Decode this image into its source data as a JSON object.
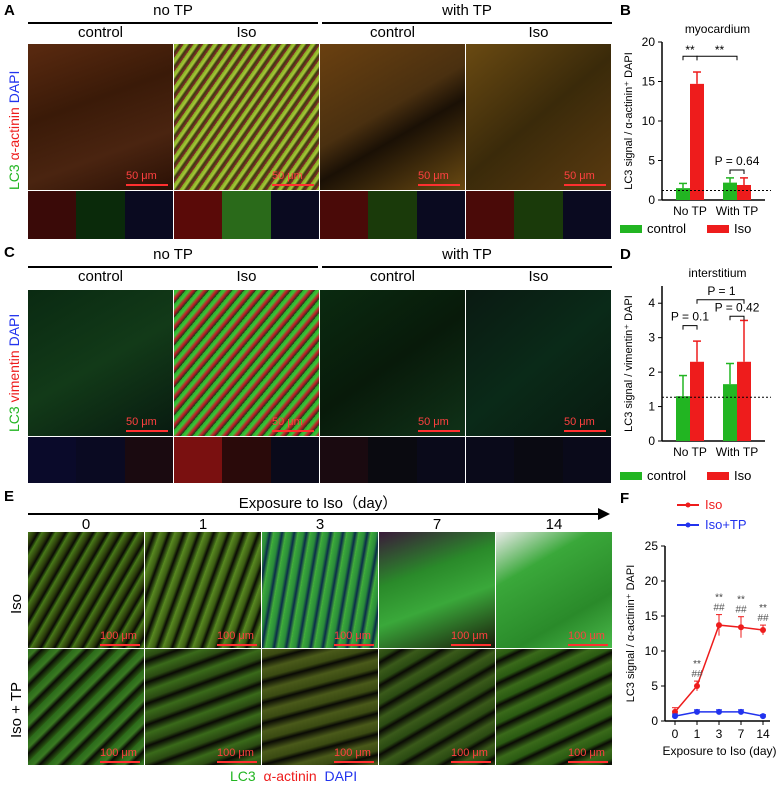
{
  "panel_letters": [
    "A",
    "B",
    "C",
    "D",
    "E",
    "F"
  ],
  "top": {
    "groups": [
      "no TP",
      "with TP"
    ],
    "conditions": [
      "control",
      "Iso",
      "control",
      "Iso"
    ],
    "stain_labels": [
      "LC3",
      "α-actinin",
      "DAPI"
    ],
    "scalebar": "50 μm"
  },
  "mid": {
    "groups": [
      "no TP",
      "with TP"
    ],
    "conditions": [
      "control",
      "Iso",
      "control",
      "Iso"
    ],
    "stain_labels": [
      "LC3",
      "vimentin",
      "DAPI"
    ],
    "scalebar": "50 μm"
  },
  "bottom": {
    "title": "Exposure to Iso（day）",
    "days": [
      "0",
      "1",
      "3",
      "7",
      "14"
    ],
    "rows": [
      "Iso",
      "Iso + TP"
    ],
    "scalebar": "100 μm",
    "caption": [
      "LC3",
      "α-actinin",
      "DAPI"
    ]
  },
  "colors": {
    "green": "#22b522",
    "red": "#ee1c1c",
    "blue": "#2233ee",
    "scalebar": "#ff3030"
  },
  "chart_data": [
    {
      "id": "B",
      "type": "bar",
      "title": "myocardium",
      "ylabel": "LC3 signal / α-actinin⁺ DAPI",
      "categories": [
        "No TP",
        "With TP"
      ],
      "series": [
        {
          "name": "control",
          "values": [
            1.5,
            2.2
          ],
          "errors": [
            0.6,
            0.6
          ]
        },
        {
          "name": "Iso",
          "values": [
            14.7,
            1.9
          ],
          "errors": [
            1.5,
            0.9
          ]
        }
      ],
      "ylim": [
        0,
        20
      ],
      "yticks": [
        0,
        5,
        10,
        15,
        20
      ],
      "baseline": 1.2,
      "annotations": [
        "**",
        "**",
        "P = 0.64"
      ]
    },
    {
      "id": "D",
      "type": "bar",
      "title": "interstitium",
      "ylabel": "LC3 signal / vimentin⁺ DAPI",
      "categories": [
        "No TP",
        "With TP"
      ],
      "series": [
        {
          "name": "control",
          "values": [
            1.3,
            1.65
          ],
          "errors": [
            0.6,
            0.6
          ]
        },
        {
          "name": "Iso",
          "values": [
            2.3,
            2.3
          ],
          "errors": [
            0.6,
            1.2
          ]
        }
      ],
      "ylim": [
        0,
        4.5
      ],
      "yticks": [
        0,
        1,
        2,
        3,
        4
      ],
      "baseline": 1.27,
      "annotations": [
        "P = 0.1",
        "P = 1",
        "P = 0.42"
      ]
    },
    {
      "id": "F",
      "type": "line",
      "xlabel": "Exposure to Iso (day)",
      "ylabel": "LC3 signal / α-actinin⁺ DAPI",
      "categories": [
        "0",
        "1",
        "3",
        "7",
        "14"
      ],
      "series": [
        {
          "name": "Iso",
          "values": [
            1.3,
            5.0,
            13.7,
            13.4,
            13.0
          ],
          "errors": [
            0.6,
            0.7,
            1.5,
            1.5,
            0.7
          ]
        },
        {
          "name": "Iso+TP",
          "values": [
            0.7,
            1.3,
            1.3,
            1.3,
            0.7
          ],
          "errors": [
            0.3,
            0.3,
            0.3,
            0.3,
            0.2
          ]
        }
      ],
      "ylim": [
        0,
        25
      ],
      "yticks": [
        0,
        5,
        10,
        15,
        20,
        25
      ],
      "sig_top": [
        "",
        "**",
        "**",
        "**",
        "**"
      ],
      "sig_bottom": [
        "",
        "##",
        "##",
        "##",
        "##"
      ]
    }
  ]
}
